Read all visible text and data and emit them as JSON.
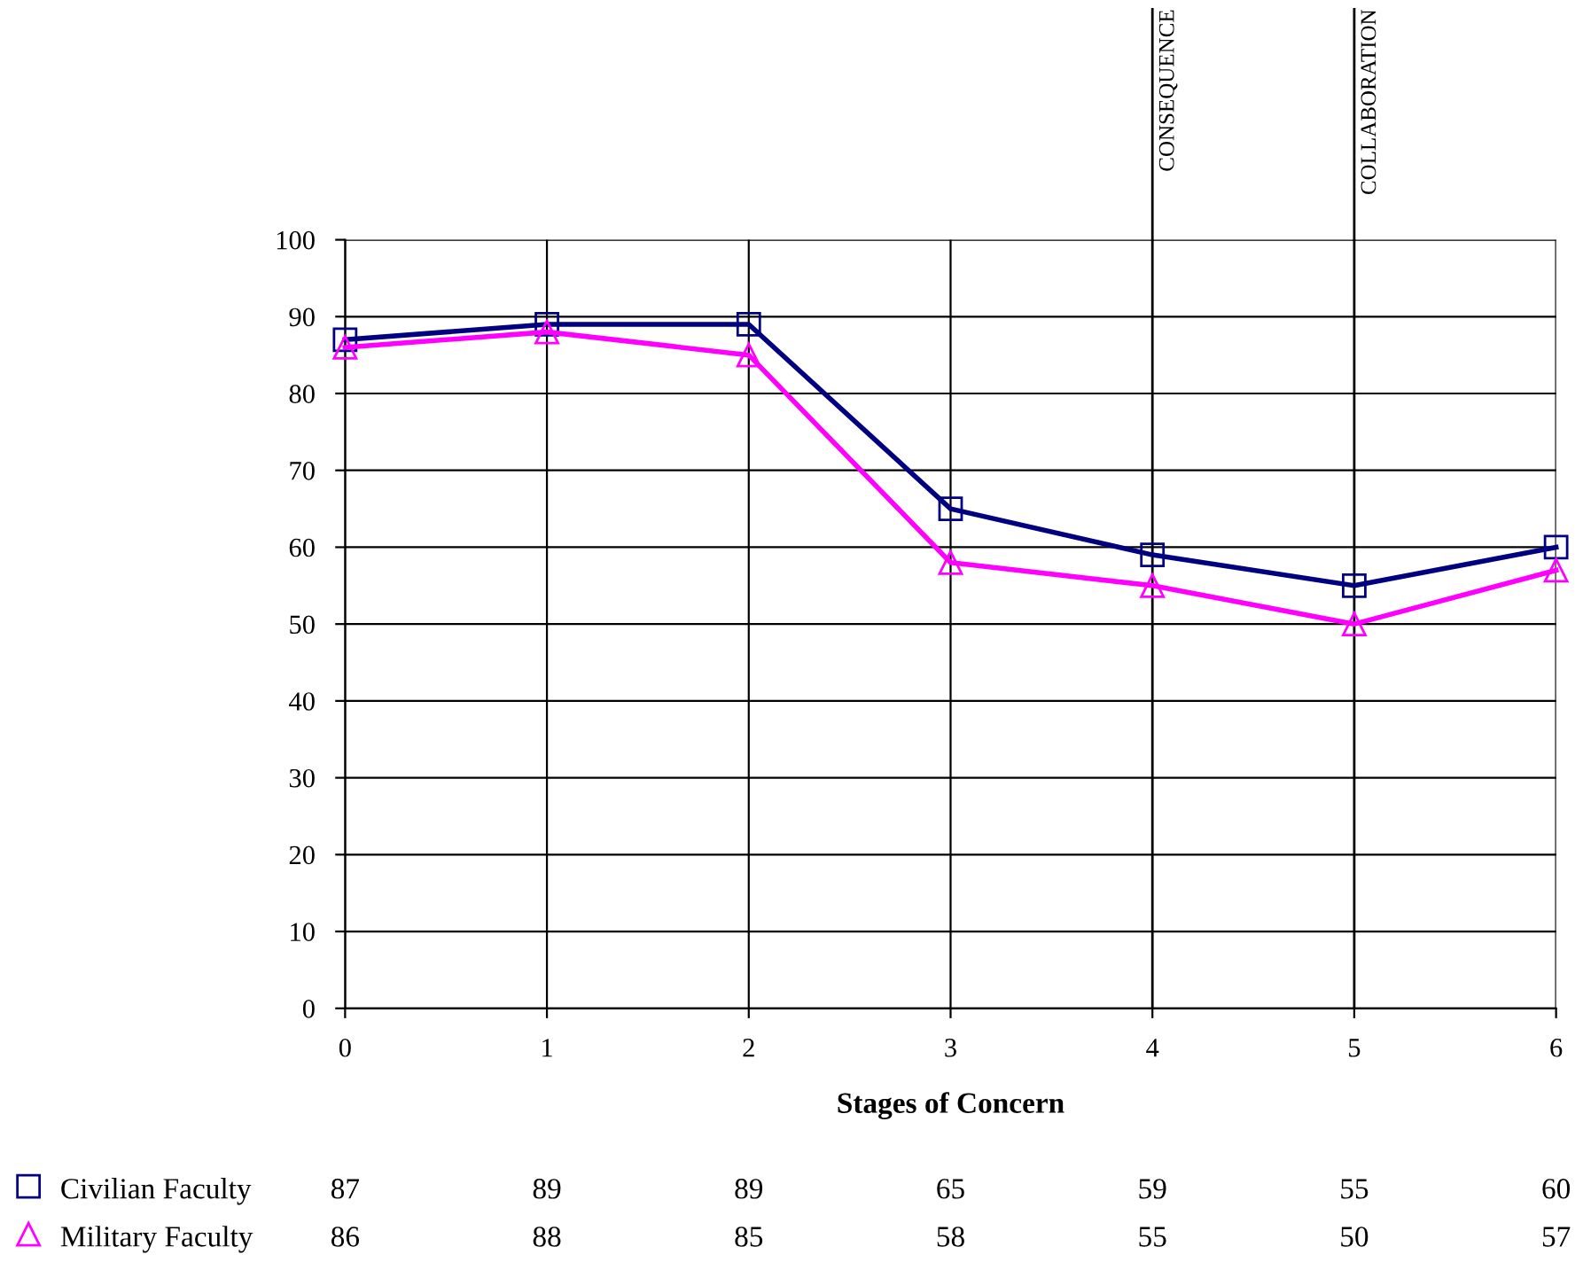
{
  "chart_data": {
    "type": "line",
    "xlabel": "Stages of Concern",
    "categories": [
      "0",
      "1",
      "2",
      "3",
      "4",
      "5",
      "6"
    ],
    "series": [
      {
        "name": "Civilian Faculty",
        "color": "#000080",
        "marker": "square",
        "values": [
          87,
          89,
          89,
          65,
          59,
          55,
          60
        ]
      },
      {
        "name": "Military Faculty",
        "color": "#ff00ff",
        "marker": "triangle",
        "values": [
          86,
          88,
          85,
          58,
          55,
          50,
          57
        ]
      }
    ],
    "ylim": [
      0,
      100
    ],
    "yticks": [
      0,
      10,
      20,
      30,
      40,
      50,
      60,
      70,
      80,
      90,
      100
    ],
    "grid": true,
    "legend": "bottom",
    "data_labels": true,
    "ref_lines": [
      {
        "axis": "x",
        "value": "4",
        "label": "CONSEQUENCE",
        "color": "#000000"
      },
      {
        "axis": "x",
        "value": "5",
        "label": "COLLABORATION",
        "color": "#000000"
      }
    ]
  }
}
